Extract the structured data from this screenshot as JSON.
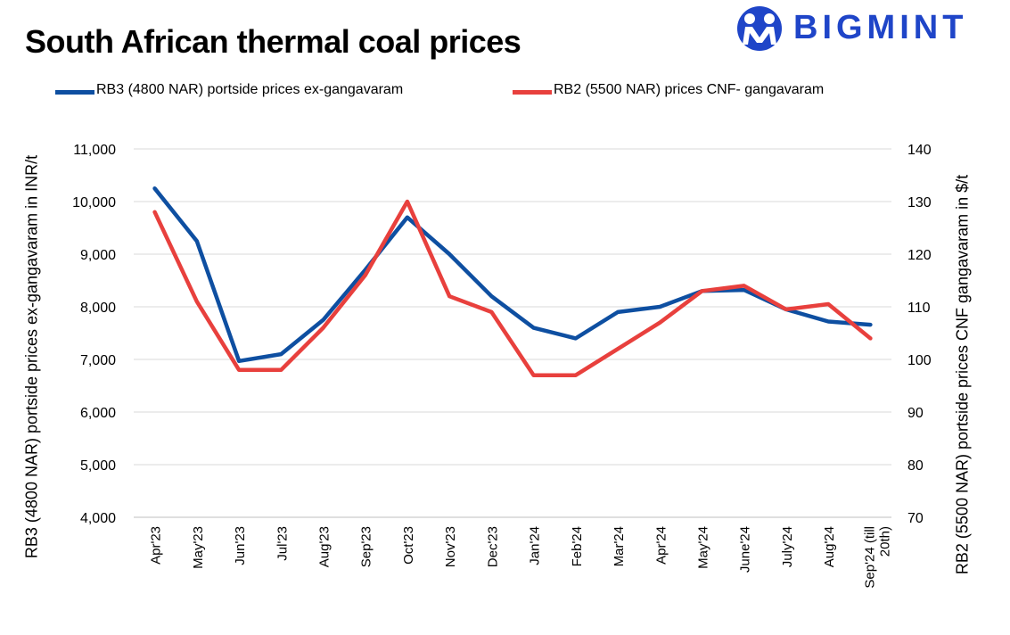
{
  "header": {
    "title": "South African thermal coal prices",
    "brand": "BIGMINT"
  },
  "colors": {
    "rb3": "#0e4fa1",
    "rb2": "#e8403d",
    "brand": "#1f45c8",
    "grid": "#d9d9d9"
  },
  "legend": [
    {
      "label": "RB3 (4800 NAR) portside prices ex-gangavaram",
      "color": "#0e4fa1"
    },
    {
      "label": "RB2 (5500 NAR) prices CNF- gangavaram",
      "color": "#e8403d"
    }
  ],
  "chart_data": {
    "type": "line",
    "categories": [
      "Apr'23",
      "May'23",
      "Jun'23",
      "Jul'23",
      "Aug'23",
      "Sep'23",
      "Oct'23",
      "Nov'23",
      "Dec'23",
      "Jan'24",
      "Feb'24",
      "Mar'24",
      "Apr'24",
      "May'24",
      "June'24",
      "July'24",
      "Aug'24",
      "Sep'24 (till 20th)"
    ],
    "y_left": {
      "label": "RB3 (4800 NAR) portside prices ex-gangavaram in INR/t",
      "lim": [
        4000,
        11000
      ],
      "ticks": [
        "4,000",
        "5,000",
        "6,000",
        "7,000",
        "8,000",
        "9,000",
        "10,000",
        "11,000"
      ]
    },
    "y_right": {
      "label": "RB2 (5500 NAR) portside prices CNF  gangavaram in $/t",
      "lim": [
        70,
        140
      ],
      "ticks": [
        "70",
        "80",
        "90",
        "100",
        "110",
        "120",
        "130",
        "140"
      ]
    },
    "series": [
      {
        "name": "RB3 (4800 NAR) portside prices ex-gangavaram",
        "axis": "left",
        "color": "#0e4fa1",
        "values": [
          10250,
          9250,
          6970,
          7100,
          7750,
          8700,
          9700,
          9000,
          8200,
          7600,
          7400,
          7900,
          8000,
          8300,
          8320,
          7950,
          7720,
          7660
        ]
      },
      {
        "name": "RB2 (5500 NAR) prices CNF- gangavaram",
        "axis": "right",
        "color": "#e8403d",
        "values": [
          128,
          111,
          98,
          98,
          106,
          116,
          130,
          112,
          109,
          97,
          97,
          102,
          107,
          113,
          114,
          109.5,
          110.5,
          104
        ]
      }
    ],
    "grid": true,
    "legend_position": "top"
  }
}
